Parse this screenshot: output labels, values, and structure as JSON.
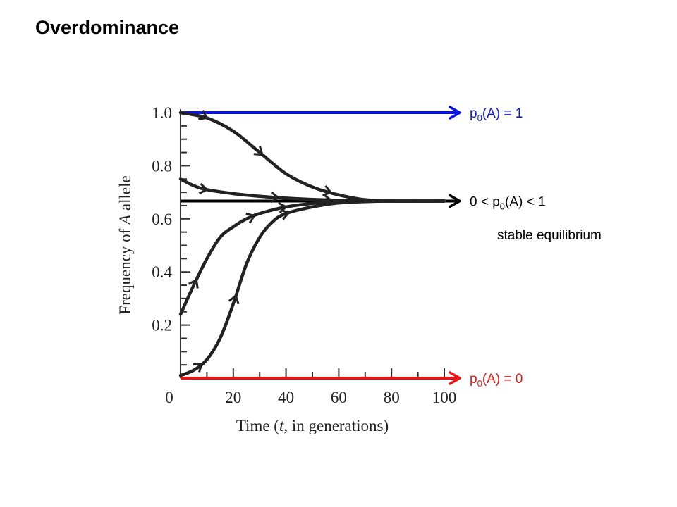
{
  "slide_title": "Overdominance",
  "colors": {
    "blue": "#0a14e6",
    "red": "#ee1111",
    "black": "#000000",
    "curve": "#222222"
  },
  "chart_data": {
    "type": "line",
    "title": "",
    "xlabel": "Time (t, in generations)",
    "xlabel_parts": {
      "before": "Time (",
      "italic": "t",
      "after": ", in generations)"
    },
    "ylabel": "Frequency of A allele",
    "ylabel_parts": {
      "before": "Frequency of ",
      "italic": "A",
      "after": " allele"
    },
    "xlim": [
      0,
      100
    ],
    "ylim": [
      0,
      1
    ],
    "x_ticks": [
      0,
      20,
      40,
      60,
      80,
      100
    ],
    "x_tick_labels": [
      "0",
      "20",
      "40",
      "60",
      "80",
      "100"
    ],
    "y_ticks": [
      0.2,
      0.4,
      0.6,
      0.8,
      1.0
    ],
    "y_tick_labels": [
      "0.2",
      "0.4",
      "0.6",
      "0.8",
      "1.0"
    ],
    "grid": false,
    "series": [
      {
        "color": "#222222",
        "x": [
          0,
          10,
          20,
          30,
          40,
          50,
          60,
          70,
          80,
          100
        ],
        "y": [
          1.0,
          0.98,
          0.93,
          0.85,
          0.77,
          0.72,
          0.69,
          0.672,
          0.667,
          0.667
        ],
        "arrows_at": [
          10,
          31,
          57
        ]
      },
      {
        "color": "#222222",
        "x": [
          0,
          5,
          10,
          20,
          30,
          40,
          50,
          60,
          70,
          80,
          100
        ],
        "y": [
          0.75,
          0.725,
          0.71,
          0.695,
          0.685,
          0.678,
          0.673,
          0.67,
          0.668,
          0.667,
          0.667
        ],
        "arrows_at": [
          10,
          37,
          57
        ]
      },
      {
        "color": "#222222",
        "x": [
          0,
          5,
          10,
          15,
          20,
          25,
          30,
          40,
          50,
          60,
          70,
          80,
          100
        ],
        "y": [
          0.24,
          0.35,
          0.45,
          0.53,
          0.57,
          0.6,
          0.62,
          0.645,
          0.658,
          0.664,
          0.666,
          0.667,
          0.667
        ],
        "arrows_at": [
          6,
          28,
          40
        ]
      },
      {
        "color": "#222222",
        "x": [
          0,
          5,
          10,
          15,
          20,
          25,
          30,
          35,
          40,
          50,
          60,
          70,
          80,
          100
        ],
        "y": [
          0.01,
          0.03,
          0.07,
          0.15,
          0.28,
          0.43,
          0.53,
          0.59,
          0.62,
          0.645,
          0.66,
          0.665,
          0.667,
          0.667
        ],
        "arrows_at": [
          8,
          21,
          41
        ]
      }
    ],
    "reference_lines": [
      {
        "name": "upper",
        "y": 1.0,
        "color": "#0a14e6"
      },
      {
        "name": "middle",
        "y": 0.667,
        "color": "#000000"
      },
      {
        "name": "lower",
        "y": 0.0,
        "color": "#ee1111"
      }
    ],
    "annotations": [
      {
        "pre": "p",
        "sub": "0",
        "post": "(A) = 1",
        "color": "#0a14e6"
      },
      {
        "pre": "0 < p",
        "sub": "0",
        "post": "(A) < 1",
        "color": "#000000"
      },
      {
        "pre": "p",
        "sub": "0",
        "post": "(A) = 0",
        "color": "#ee1111"
      }
    ],
    "equilibrium_note": "stable equilibrium"
  }
}
